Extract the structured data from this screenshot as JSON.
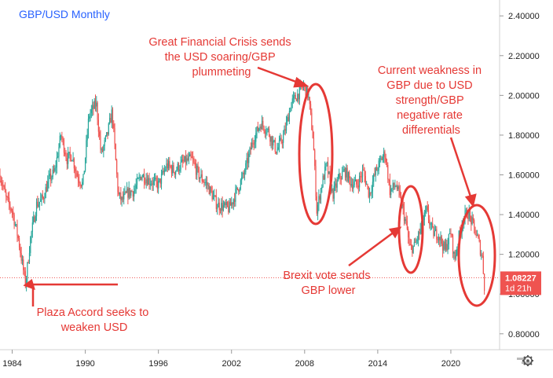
{
  "chart_data": {
    "type": "line",
    "title": "GBP/USD Monthly",
    "y_ticks": [
      "2.40000",
      "2.20000",
      "2.00000",
      "1.80000",
      "1.60000",
      "1.40000",
      "1.20000",
      "1.00000",
      "0.80000"
    ],
    "y_tick_values": [
      2.4,
      2.2,
      2.0,
      1.8,
      1.6,
      1.4,
      1.2,
      1.0,
      0.8
    ],
    "ylim": [
      0.72,
      2.48
    ],
    "x_ticks": [
      "1984",
      "1990",
      "1996",
      "2002",
      "2008",
      "2014",
      "2020"
    ],
    "x_tick_values": [
      1984,
      1990,
      1996,
      2002,
      2008,
      2014,
      2020
    ],
    "xlim": [
      1983.0,
      2024.0
    ],
    "current_price": {
      "value": 1.08227,
      "label": "1.08227",
      "countdown": "1d 21h"
    },
    "series": [
      {
        "x": [
          1983.0,
          1983.5,
          1984.0,
          1984.5,
          1985.1,
          1985.5,
          1986.0,
          1986.5,
          1987.0,
          1987.5,
          1988.0,
          1988.5,
          1988.9,
          1989.3,
          1989.8,
          1990.3,
          1990.9,
          1991.3,
          1991.8,
          1992.2,
          1992.7,
          1993.0,
          1993.5,
          1994.0,
          1994.6,
          1995.3,
          1996.0,
          1996.7,
          1997.3,
          1998.0,
          1998.7,
          1999.3,
          2000.0,
          2000.8,
          2001.3,
          2001.8,
          2002.3,
          2003.0,
          2003.8,
          2004.4,
          2005.0,
          2005.7,
          2006.3,
          2006.9,
          2007.5,
          2007.9,
          2008.3,
          2008.7,
          2009.0,
          2009.4,
          2009.8,
          2010.3,
          2010.8,
          2011.3,
          2011.8,
          2012.3,
          2012.8,
          2013.3,
          2013.8,
          2014.3,
          2014.6,
          2015.0,
          2015.5,
          2016.0,
          2016.4,
          2016.6,
          2017.0,
          2017.5,
          2018.0,
          2018.5,
          2019.0,
          2019.5,
          2020.0,
          2020.3,
          2020.7,
          2021.0,
          2021.4,
          2021.8,
          2022.2,
          2022.6,
          2022.75
        ],
        "y": [
          1.6,
          1.48,
          1.42,
          1.28,
          1.05,
          1.28,
          1.45,
          1.48,
          1.57,
          1.62,
          1.8,
          1.68,
          1.7,
          1.6,
          1.55,
          1.9,
          1.96,
          1.7,
          1.8,
          1.92,
          1.5,
          1.47,
          1.51,
          1.52,
          1.6,
          1.57,
          1.55,
          1.65,
          1.62,
          1.66,
          1.68,
          1.6,
          1.55,
          1.45,
          1.44,
          1.43,
          1.5,
          1.6,
          1.78,
          1.86,
          1.82,
          1.72,
          1.8,
          1.96,
          2.01,
          2.05,
          2.0,
          1.78,
          1.42,
          1.55,
          1.65,
          1.5,
          1.58,
          1.62,
          1.56,
          1.55,
          1.62,
          1.5,
          1.61,
          1.68,
          1.71,
          1.52,
          1.55,
          1.44,
          1.33,
          1.23,
          1.24,
          1.32,
          1.42,
          1.31,
          1.3,
          1.22,
          1.31,
          1.17,
          1.3,
          1.38,
          1.41,
          1.35,
          1.28,
          1.18,
          1.04
        ]
      }
    ],
    "annotations": [
      {
        "id": "gfc",
        "lines": [
          "Great Financial Crisis sends",
          "the USD soaring/GBP",
          "plummeting"
        ]
      },
      {
        "id": "current",
        "lines": [
          "Current weakness in",
          "GBP due to USD",
          "strength/GBP",
          "negative rate",
          "differentials"
        ]
      },
      {
        "id": "brexit",
        "lines": [
          "Brexit vote sends",
          "GBP lower"
        ]
      },
      {
        "id": "plaza",
        "lines": [
          "Plaza Accord seeks to",
          "weaken USD"
        ]
      }
    ],
    "colors": {
      "annotation": "#e53935",
      "title": "#2962ff",
      "up_candle": "#26a69a",
      "down_candle": "#ef5350",
      "price_box": "#ef5350",
      "dotted_line": "#ef5350",
      "axis": "#555555"
    }
  },
  "toolbar": {
    "settings_icon": "gear-icon"
  }
}
